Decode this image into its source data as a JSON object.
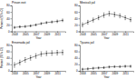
{
  "chart_data": [
    {
      "type": "line",
      "title": "Prison exit",
      "xlabel": "Year",
      "ylabel": "Percent (95% CI)",
      "x": [
        2003,
        2004,
        2005,
        2006,
        2007,
        2008,
        2009,
        2010,
        2011,
        2012
      ],
      "xlim": [
        2002.5,
        2012.5
      ],
      "xticks": [
        2003,
        2005,
        2007,
        2009,
        2011
      ],
      "ylim": [
        0,
        80
      ],
      "yticks": [
        0,
        20,
        40,
        60,
        80
      ],
      "series": [
        {
          "color": "#333333",
          "marker": "circle",
          "values": [
            12,
            14,
            15,
            17,
            20,
            24,
            27,
            29,
            31,
            34
          ],
          "errors": [
            3,
            3,
            3,
            3,
            3,
            3,
            3,
            3,
            4,
            4
          ]
        }
      ]
    },
    {
      "type": "line",
      "title": "Mexicali jail",
      "xlabel": "Year",
      "x": [
        2003,
        2004,
        2005,
        2006,
        2007,
        2008,
        2009,
        2010,
        2011,
        2012
      ],
      "xlim": [
        2002.5,
        2012.5
      ],
      "xticks": [
        2003,
        2005,
        2007,
        2009,
        2011
      ],
      "ylim": [
        0,
        80
      ],
      "yticks": [
        0,
        20,
        40,
        60,
        80
      ],
      "series": [
        {
          "color": "#333333",
          "marker": "circle",
          "values": [
            20,
            28,
            35,
            42,
            50,
            55,
            52,
            48,
            42,
            36
          ],
          "errors": [
            6,
            6,
            6,
            6,
            7,
            7,
            7,
            6,
            6,
            6
          ]
        }
      ]
    },
    {
      "type": "line",
      "title": "Ensenada jail",
      "xlabel": "Year",
      "ylabel": "Percent (95% CI)",
      "x": [
        2003,
        2004,
        2005,
        2006,
        2007,
        2008,
        2009,
        2010,
        2011,
        2012
      ],
      "xlim": [
        2002.5,
        2012.5
      ],
      "xticks": [
        2003,
        2005,
        2007,
        2009,
        2011
      ],
      "ylim": [
        0,
        80
      ],
      "yticks": [
        0,
        20,
        40,
        60,
        80
      ],
      "series": [
        {
          "color": "#333333",
          "marker": "circle",
          "values": [
            18,
            26,
            34,
            40,
            46,
            52,
            54,
            55,
            56,
            57
          ],
          "errors": [
            7,
            7,
            7,
            7,
            7,
            7,
            7,
            7,
            7,
            7
          ]
        }
      ]
    },
    {
      "type": "line",
      "title": "Tijuana jail",
      "xlabel": "Year",
      "x": [
        2003,
        2004,
        2005,
        2006,
        2007,
        2008,
        2009,
        2010,
        2011,
        2012
      ],
      "xlim": [
        2002.5,
        2012.5
      ],
      "xticks": [
        2003,
        2005,
        2007,
        2009,
        2011
      ],
      "ylim": [
        0,
        80
      ],
      "yticks": [
        0,
        20,
        40,
        60,
        80
      ],
      "series": [
        {
          "color": "#333333",
          "marker": "circle",
          "values": [
            5,
            6,
            8,
            9,
            10,
            12,
            13,
            13,
            14,
            14
          ],
          "errors": [
            3,
            3,
            3,
            3,
            3,
            3,
            3,
            3,
            3,
            3
          ]
        }
      ]
    }
  ]
}
